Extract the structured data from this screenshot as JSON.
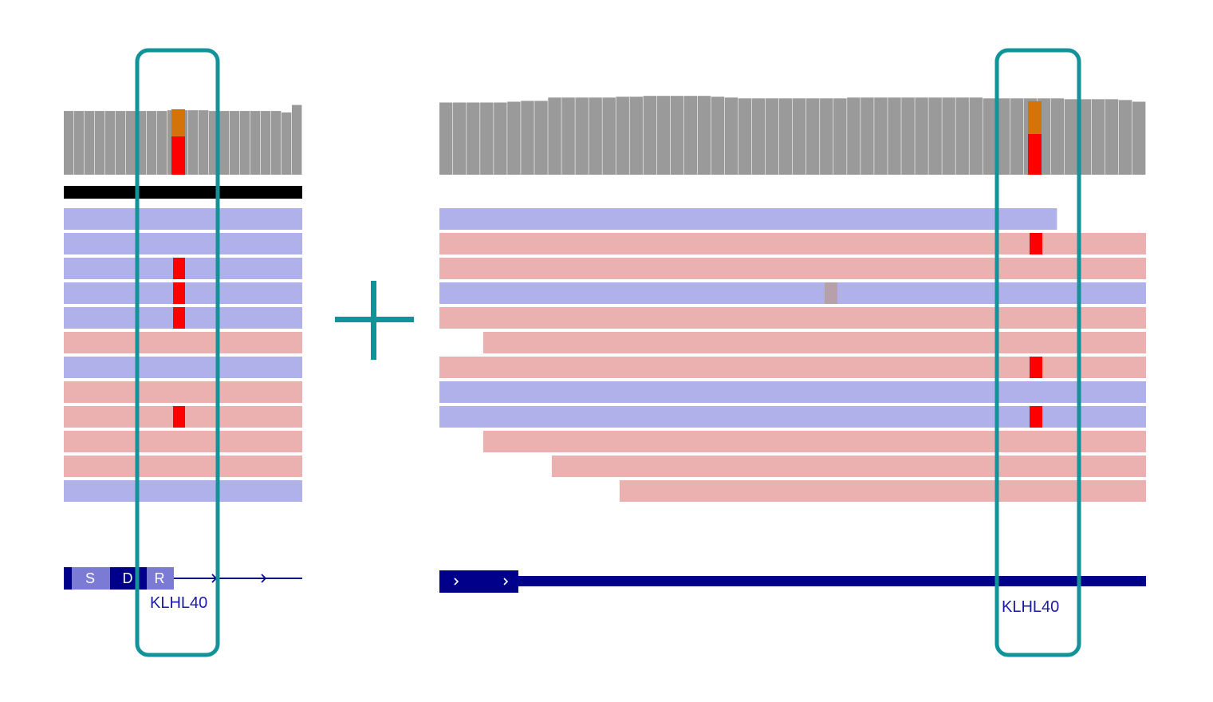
{
  "colors": {
    "coverage": "#9a9a9a",
    "coverage_gap": "#b8b8b8",
    "forward_read": "#b0b0ea",
    "reverse_read": "#ebb0b0",
    "mismatch": "#ff0000",
    "mismatch_alt": "#d4730a",
    "gray_mismatch": "#b8a0a8",
    "highlight": "#12939a",
    "gene_dark": "#00008b",
    "gene_light": "#7b7bd6",
    "gene_label": "#1a1aa8",
    "split_bar": "#000000"
  },
  "operator_icon": "plus-icon",
  "left_panel": {
    "gene_label": "KLHL40",
    "exon_labels": [
      "S",
      "D",
      "R"
    ],
    "read_strands": [
      "+",
      "+",
      "+",
      "+",
      "+",
      "-",
      "+",
      "-",
      "-",
      "-",
      "-",
      "+"
    ],
    "mismatch_rows": [
      3,
      4,
      5,
      9
    ],
    "coverage_heights": [
      0.85,
      0.85,
      0.85,
      0.85,
      0.85,
      0.85,
      0.85,
      0.85,
      0.85,
      0.85,
      0.86,
      0.86,
      0.86,
      0.86,
      0.85,
      0.85,
      0.85,
      0.85,
      0.85,
      0.85,
      0.85,
      0.83,
      0.93
    ]
  },
  "right_panel": {
    "gene_label": "KLHL40",
    "reads": [
      {
        "strand": "+",
        "start": 0.0,
        "end": 0.874
      },
      {
        "strand": "-",
        "start": 0.0,
        "end": 1.0
      },
      {
        "strand": "-",
        "start": 0.0,
        "end": 1.0
      },
      {
        "strand": "+",
        "start": 0.0,
        "end": 1.0
      },
      {
        "strand": "-",
        "start": 0.0,
        "end": 1.0
      },
      {
        "strand": "-",
        "start": 0.062,
        "end": 1.0
      },
      {
        "strand": "-",
        "start": 0.0,
        "end": 1.0
      },
      {
        "strand": "+",
        "start": 0.0,
        "end": 1.0
      },
      {
        "strand": "+",
        "start": 0.0,
        "end": 1.0
      },
      {
        "strand": "-",
        "start": 0.062,
        "end": 1.0
      },
      {
        "strand": "-",
        "start": 0.159,
        "end": 1.0
      },
      {
        "strand": "-",
        "start": 0.255,
        "end": 1.0
      }
    ],
    "mismatch_rows": [
      2,
      7,
      9
    ],
    "gray_mismatch_row": 4,
    "coverage_heights": [
      0.87,
      0.87,
      0.87,
      0.87,
      0.87,
      0.88,
      0.89,
      0.89,
      0.93,
      0.93,
      0.93,
      0.93,
      0.93,
      0.94,
      0.94,
      0.95,
      0.95,
      0.95,
      0.95,
      0.95,
      0.94,
      0.93,
      0.92,
      0.92,
      0.92,
      0.92,
      0.92,
      0.92,
      0.92,
      0.92,
      0.93,
      0.93,
      0.93,
      0.93,
      0.93,
      0.93,
      0.93,
      0.93,
      0.93,
      0.93,
      0.92,
      0.92,
      0.92,
      0.92,
      0.92,
      0.92,
      0.91,
      0.91,
      0.91,
      0.91,
      0.9,
      0.88
    ]
  }
}
